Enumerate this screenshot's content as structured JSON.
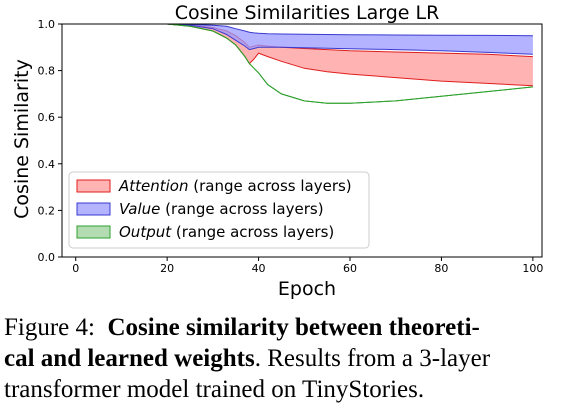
{
  "chart_data": {
    "type": "area",
    "title": "Cosine Similarities Large LR",
    "xlabel": "Epoch",
    "ylabel": "Cosine Similarity",
    "xlim": [
      -3,
      102
    ],
    "ylim": [
      0.0,
      1.0
    ],
    "xticks": [
      "0",
      "20",
      "40",
      "60",
      "80",
      "100"
    ],
    "yticks": [
      "0.0",
      "0.2",
      "0.4",
      "0.6",
      "0.8",
      "1.0"
    ],
    "legend_position": "lower-left",
    "x": [
      2,
      10,
      20,
      25,
      30,
      33,
      35,
      37,
      38,
      39,
      40,
      42,
      45,
      50,
      55,
      60,
      70,
      80,
      90,
      100
    ],
    "series": [
      {
        "name": "Attention",
        "legend_rest": " (range across layers)",
        "color": "#ff9a9a",
        "edge": "#e01e1e",
        "upper": [
          1.0,
          1.0,
          1.0,
          0.995,
          0.985,
          0.97,
          0.95,
          0.92,
          0.9,
          0.905,
          0.91,
          0.905,
          0.9,
          0.895,
          0.89,
          0.885,
          0.88,
          0.875,
          0.87,
          0.86
        ],
        "lower": [
          1.0,
          1.0,
          1.0,
          0.99,
          0.97,
          0.94,
          0.91,
          0.86,
          0.83,
          0.85,
          0.875,
          0.86,
          0.84,
          0.81,
          0.795,
          0.785,
          0.77,
          0.755,
          0.745,
          0.735
        ]
      },
      {
        "name": "Value",
        "legend_rest": " (range across layers)",
        "color": "#9a9aff",
        "edge": "#3a3ad0",
        "upper": [
          1.0,
          1.0,
          1.0,
          0.998,
          0.995,
          0.99,
          0.98,
          0.97,
          0.965,
          0.962,
          0.96,
          0.958,
          0.957,
          0.956,
          0.955,
          0.954,
          0.953,
          0.952,
          0.951,
          0.95
        ],
        "lower": [
          1.0,
          1.0,
          1.0,
          0.995,
          0.98,
          0.955,
          0.93,
          0.905,
          0.89,
          0.895,
          0.9,
          0.9,
          0.9,
          0.898,
          0.896,
          0.894,
          0.89,
          0.885,
          0.878,
          0.87
        ]
      },
      {
        "name": "Output",
        "legend_rest": " (range across layers)",
        "color": "#9ad09a",
        "edge": "#2ca02c",
        "upper": [
          1.0,
          1.0,
          1.0,
          0.99,
          0.97,
          0.94,
          0.91,
          0.86,
          0.83,
          0.81,
          0.79,
          0.74,
          0.7,
          0.67,
          0.66,
          0.66,
          0.67,
          0.69,
          0.71,
          0.73
        ],
        "lower": [
          1.0,
          1.0,
          1.0,
          0.99,
          0.97,
          0.94,
          0.91,
          0.86,
          0.83,
          0.81,
          0.79,
          0.74,
          0.7,
          0.67,
          0.66,
          0.66,
          0.67,
          0.69,
          0.71,
          0.73
        ]
      }
    ]
  },
  "caption": {
    "label": "Figure 4:",
    "bold": "Cosine similarity between theoreti-cal and learned weights",
    "bold_line1": "Cosine similarity between theoreti-",
    "bold_line2": "cal and learned weights",
    "rest_line2": ". Results from a 3-layer",
    "rest_line3": "transformer model trained on TinyStories."
  }
}
